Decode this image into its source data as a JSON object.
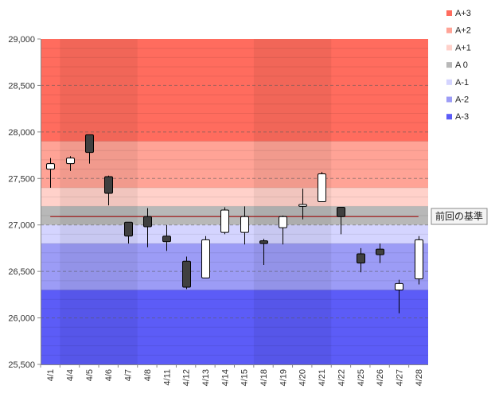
{
  "chart_data": {
    "type": "candlestick",
    "title": "",
    "xlabel": "",
    "ylabel": "",
    "ylim": [
      25500,
      29000
    ],
    "y_ticks": [
      "25,500",
      "26,000",
      "26,500",
      "27,000",
      "27,500",
      "28,000",
      "28,500",
      "29,000"
    ],
    "y_tick_values": [
      25500,
      26000,
      26500,
      27000,
      27500,
      28000,
      28500,
      29000
    ],
    "categories": [
      "4/1",
      "4/4",
      "4/5",
      "4/6",
      "4/7",
      "4/8",
      "4/11",
      "4/12",
      "4/13",
      "4/14",
      "4/15",
      "4/18",
      "4/19",
      "4/20",
      "4/21",
      "4/22",
      "4/25",
      "4/26",
      "4/27",
      "4/28"
    ],
    "ohlc": [
      {
        "open": 27600,
        "high": 27720,
        "low": 27400,
        "close": 27660
      },
      {
        "open": 27660,
        "high": 27740,
        "low": 27580,
        "close": 27720
      },
      {
        "open": 27970,
        "high": 27970,
        "low": 27660,
        "close": 27780
      },
      {
        "open": 27520,
        "high": 27530,
        "low": 27210,
        "close": 27340
      },
      {
        "open": 27030,
        "high": 27030,
        "low": 26800,
        "close": 26880
      },
      {
        "open": 27090,
        "high": 27180,
        "low": 26760,
        "close": 26980
      },
      {
        "open": 26880,
        "high": 27000,
        "low": 26720,
        "close": 26820
      },
      {
        "open": 26610,
        "high": 26660,
        "low": 26310,
        "close": 26330
      },
      {
        "open": 26430,
        "high": 26880,
        "low": 26430,
        "close": 26840
      },
      {
        "open": 26920,
        "high": 27190,
        "low": 26900,
        "close": 27160
      },
      {
        "open": 26920,
        "high": 27200,
        "low": 26790,
        "close": 27090
      },
      {
        "open": 26830,
        "high": 26850,
        "low": 26570,
        "close": 26800
      },
      {
        "open": 26970,
        "high": 27100,
        "low": 26790,
        "close": 27090
      },
      {
        "open": 27200,
        "high": 27390,
        "low": 27060,
        "close": 27220
      },
      {
        "open": 27250,
        "high": 27570,
        "low": 27250,
        "close": 27550
      },
      {
        "open": 27190,
        "high": 27190,
        "low": 26900,
        "close": 27090
      },
      {
        "open": 26690,
        "high": 26750,
        "low": 26490,
        "close": 26590
      },
      {
        "open": 26740,
        "high": 26800,
        "low": 26590,
        "close": 26680
      },
      {
        "open": 26300,
        "high": 26410,
        "low": 26050,
        "close": 26370
      },
      {
        "open": 26420,
        "high": 26880,
        "low": 26360,
        "close": 26840
      }
    ],
    "reference_line": {
      "value": 27090,
      "label": "前回の基準",
      "color": "#a00000"
    },
    "bands": [
      {
        "name": "A+3",
        "from": 27900,
        "to": 29000,
        "color": "#ff6c5e"
      },
      {
        "name": "A+2",
        "from": 27400,
        "to": 27900,
        "color": "#ffa396"
      },
      {
        "name": "A+1",
        "from": 27200,
        "to": 27400,
        "color": "#ffd1ca"
      },
      {
        "name": "A 0",
        "from": 27000,
        "to": 27200,
        "color": "#b8b8b8"
      },
      {
        "name": "A-1",
        "from": 26800,
        "to": 27000,
        "color": "#d4d4ff"
      },
      {
        "name": "A-2",
        "from": 26300,
        "to": 26800,
        "color": "#9c9cf6"
      },
      {
        "name": "A-3",
        "from": 25500,
        "to": 26300,
        "color": "#5c5cf7"
      }
    ],
    "week_shading": [
      [
        1,
        5
      ],
      [
        11,
        15
      ]
    ],
    "legend": [
      {
        "label": "A+3",
        "color": "#ff6c5e"
      },
      {
        "label": "A+2",
        "color": "#ffa396"
      },
      {
        "label": "A+1",
        "color": "#ffd1ca"
      },
      {
        "label": "A 0",
        "color": "#b8b8b8"
      },
      {
        "label": "A-1",
        "color": "#d4d4ff"
      },
      {
        "label": "A-2",
        "color": "#9c9cf6"
      },
      {
        "label": "A-3",
        "color": "#5c5cf7"
      }
    ],
    "legend_position": "right",
    "grid": "horizontal-dashed",
    "up_color": "#ffffff",
    "down_color": "#404040"
  }
}
